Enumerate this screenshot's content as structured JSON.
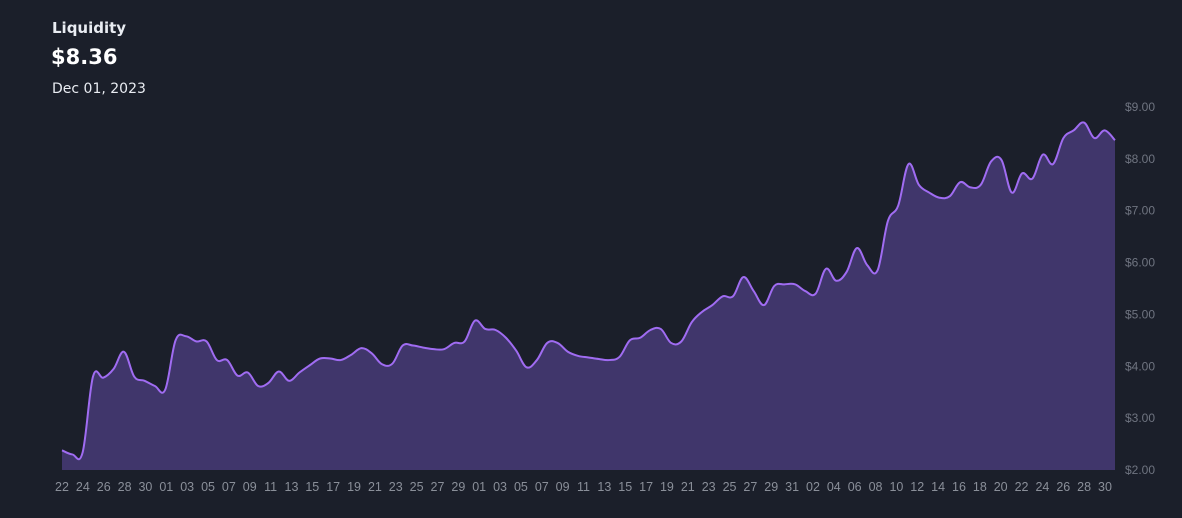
{
  "header": {
    "title": "Liquidity",
    "value": "$8.36",
    "date": "Dec 01, 2023"
  },
  "colors": {
    "background": "#1b1f2a",
    "line": "#a06cf2",
    "area": "#40366b"
  },
  "chart_data": {
    "type": "area",
    "title": "Liquidity",
    "xlabel": "",
    "ylabel": "",
    "ylim": [
      2,
      9
    ],
    "y_ticks": [
      9,
      8,
      7,
      6,
      5,
      4,
      3,
      2
    ],
    "y_tick_labels": [
      "$9.00",
      "$8.00",
      "$7.00",
      "$6.00",
      "$5.00",
      "$4.00",
      "$3.00",
      "$2.00"
    ],
    "x_tick_labels": [
      "22",
      "24",
      "26",
      "28",
      "30",
      "01",
      "03",
      "05",
      "07",
      "09",
      "11",
      "13",
      "15",
      "17",
      "19",
      "21",
      "23",
      "25",
      "27",
      "29",
      "01",
      "03",
      "05",
      "07",
      "09",
      "11",
      "13",
      "15",
      "17",
      "19",
      "21",
      "23",
      "25",
      "27",
      "29",
      "31",
      "02",
      "04",
      "06",
      "08",
      "10",
      "12",
      "14",
      "16",
      "18",
      "20",
      "22",
      "24",
      "26",
      "28",
      "30"
    ],
    "grid": false,
    "legend": "none",
    "series": [
      {
        "values": [
          2.38,
          2.3,
          2.34,
          3.8,
          3.78,
          3.95,
          4.28,
          3.8,
          3.72,
          3.62,
          3.55,
          4.5,
          4.58,
          4.48,
          4.48,
          4.12,
          4.12,
          3.82,
          3.88,
          3.62,
          3.68,
          3.9,
          3.72,
          3.88,
          4.02,
          4.15,
          4.15,
          4.12,
          4.22,
          4.35,
          4.25,
          4.04,
          4.05,
          4.4,
          4.4,
          4.36,
          4.33,
          4.33,
          4.45,
          4.48,
          4.88,
          4.72,
          4.7,
          4.55,
          4.3,
          3.98,
          4.12,
          4.45,
          4.45,
          4.28,
          4.2,
          4.17,
          4.14,
          4.12,
          4.18,
          4.5,
          4.55,
          4.7,
          4.72,
          4.45,
          4.48,
          4.85,
          5.05,
          5.18,
          5.35,
          5.35,
          5.72,
          5.45,
          5.18,
          5.55,
          5.58,
          5.58,
          5.45,
          5.4,
          5.88,
          5.65,
          5.82,
          6.28,
          5.95,
          5.85,
          6.8,
          7.1,
          7.9,
          7.5,
          7.35,
          7.25,
          7.28,
          7.55,
          7.45,
          7.5,
          7.95,
          7.98,
          7.35,
          7.72,
          7.62,
          8.08,
          7.9,
          8.4,
          8.55,
          8.7,
          8.4,
          8.55,
          8.36
        ]
      }
    ]
  }
}
